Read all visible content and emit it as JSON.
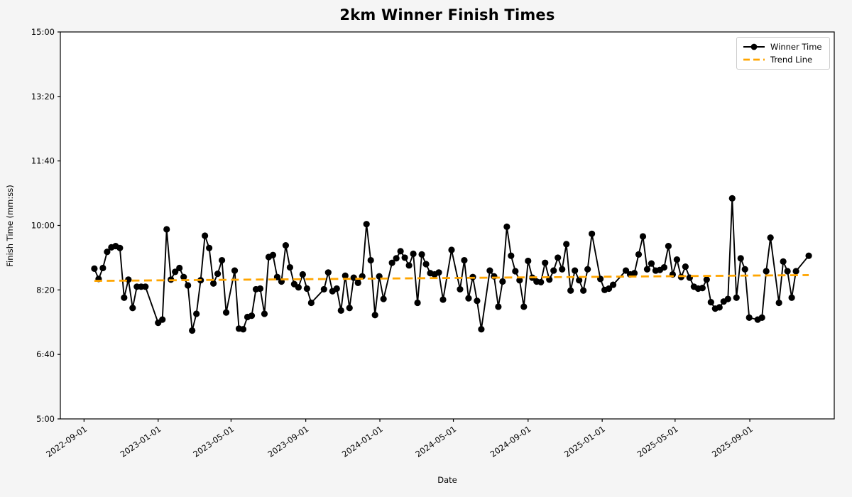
{
  "title": "2km Winner Finish Times",
  "xlabel": "Date",
  "ylabel": "Finish Time (mm:ss)",
  "legend": {
    "series1_label": "Winner Time",
    "series2_label": "Trend Line"
  },
  "colors": {
    "winner_line": "#000000",
    "trend_line": "#FFA500",
    "figure_bg": "#f5f5f5",
    "plot_bg": "#ffffff",
    "spine": "#000000",
    "legend_border": "#cccccc"
  },
  "chart_data": {
    "type": "line",
    "title": "2km Winner Finish Times",
    "xlabel": "Date",
    "ylabel": "Finish Time (mm:ss)",
    "grid": false,
    "legend_position": "upper right",
    "ylim": [
      "5:00",
      "15:00"
    ],
    "y_ticks": [
      "5:00",
      "6:40",
      "8:20",
      "10:00",
      "11:40",
      "13:20",
      "15:00"
    ],
    "x_ticks": [
      "2022-09-01",
      "2023-01-01",
      "2023-05-01",
      "2023-09-01",
      "2024-01-01",
      "2024-05-01",
      "2024-09-01",
      "2025-01-01",
      "2025-05-01",
      "2025-09-01"
    ],
    "x_tick_rotation_deg": -35,
    "x_domain": [
      "2022-07-24",
      "2026-01-18"
    ],
    "series": [
      {
        "name": "Winner Time",
        "style": "solid_with_markers",
        "color": "#000000",
        "x": [
          "2022-09-18",
          "2022-09-25",
          "2022-10-02",
          "2022-10-09",
          "2022-10-16",
          "2022-10-23",
          "2022-10-30",
          "2022-11-06",
          "2022-11-13",
          "2022-11-20",
          "2022-11-27",
          "2022-12-04",
          "2022-12-11",
          "2023-01-01",
          "2023-01-08",
          "2023-01-15",
          "2023-01-22",
          "2023-01-29",
          "2023-02-05",
          "2023-02-12",
          "2023-02-19",
          "2023-02-26",
          "2023-03-05",
          "2023-03-12",
          "2023-03-19",
          "2023-03-26",
          "2023-04-02",
          "2023-04-09",
          "2023-04-16",
          "2023-04-23",
          "2023-05-07",
          "2023-05-14",
          "2023-05-21",
          "2023-05-28",
          "2023-06-04",
          "2023-06-11",
          "2023-06-18",
          "2023-06-25",
          "2023-07-02",
          "2023-07-09",
          "2023-07-16",
          "2023-07-23",
          "2023-07-30",
          "2023-08-06",
          "2023-08-13",
          "2023-08-20",
          "2023-08-27",
          "2023-09-03",
          "2023-09-10",
          "2023-10-01",
          "2023-10-08",
          "2023-10-15",
          "2023-10-22",
          "2023-10-29",
          "2023-11-05",
          "2023-11-12",
          "2023-11-19",
          "2023-11-26",
          "2023-12-03",
          "2023-12-10",
          "2023-12-17",
          "2023-12-24",
          "2023-12-31",
          "2024-01-07",
          "2024-01-21",
          "2024-01-28",
          "2024-02-04",
          "2024-02-11",
          "2024-02-18",
          "2024-02-25",
          "2024-03-03",
          "2024-03-10",
          "2024-03-17",
          "2024-03-24",
          "2024-03-31",
          "2024-04-07",
          "2024-04-14",
          "2024-04-28",
          "2024-05-12",
          "2024-05-19",
          "2024-05-26",
          "2024-06-02",
          "2024-06-09",
          "2024-06-16",
          "2024-06-30",
          "2024-07-07",
          "2024-07-14",
          "2024-07-21",
          "2024-07-28",
          "2024-08-04",
          "2024-08-11",
          "2024-08-18",
          "2024-08-25",
          "2024-09-01",
          "2024-09-08",
          "2024-09-15",
          "2024-09-22",
          "2024-09-29",
          "2024-10-06",
          "2024-10-13",
          "2024-10-20",
          "2024-10-27",
          "2024-11-03",
          "2024-11-10",
          "2024-11-17",
          "2024-11-24",
          "2024-12-01",
          "2024-12-08",
          "2024-12-15",
          "2024-12-29",
          "2025-01-05",
          "2025-01-12",
          "2025-01-19",
          "2025-02-09",
          "2025-02-16",
          "2025-02-23",
          "2025-03-02",
          "2025-03-09",
          "2025-03-16",
          "2025-03-23",
          "2025-03-30",
          "2025-04-06",
          "2025-04-13",
          "2025-04-20",
          "2025-04-27",
          "2025-05-04",
          "2025-05-11",
          "2025-05-18",
          "2025-05-25",
          "2025-06-01",
          "2025-06-08",
          "2025-06-15",
          "2025-06-22",
          "2025-06-29",
          "2025-07-06",
          "2025-07-13",
          "2025-07-20",
          "2025-07-27",
          "2025-08-03",
          "2025-08-10",
          "2025-08-17",
          "2025-08-24",
          "2025-08-31",
          "2025-09-14",
          "2025-09-21",
          "2025-09-28",
          "2025-10-05",
          "2025-10-19",
          "2025-10-26",
          "2025-11-02",
          "2025-11-09",
          "2025-11-16",
          "2025-12-07"
        ],
        "y": [
          "8:53",
          "8:37",
          "8:54",
          "9:19",
          "9:26",
          "9:28",
          "9:25",
          "8:08",
          "8:36",
          "7:52",
          "8:25",
          "8:25",
          "8:25",
          "7:29",
          "7:34",
          "9:54",
          "8:36",
          "8:48",
          "8:54",
          "8:40",
          "8:27",
          "7:17",
          "7:43",
          "8:35",
          "9:44",
          "9:25",
          "8:30",
          "8:45",
          "9:06",
          "7:45",
          "8:50",
          "7:20",
          "7:19",
          "7:38",
          "7:40",
          "8:21",
          "8:22",
          "7:43",
          "9:11",
          "9:14",
          "8:40",
          "8:33",
          "9:29",
          "8:55",
          "8:29",
          "8:24",
          "8:44",
          "8:22",
          "8:00",
          "8:21",
          "8:47",
          "8:18",
          "8:22",
          "7:48",
          "8:42",
          "7:52",
          "8:39",
          "8:31",
          "8:41",
          "10:02",
          "9:06",
          "7:41",
          "8:41",
          "8:06",
          "9:02",
          "9:09",
          "9:20",
          "9:10",
          "8:58",
          "9:16",
          "8:00",
          "9:15",
          "9:00",
          "8:46",
          "8:44",
          "8:47",
          "8:05",
          "9:22",
          "8:21",
          "9:06",
          "8:07",
          "8:40",
          "8:03",
          "7:19",
          "8:50",
          "8:41",
          "7:54",
          "8:33",
          "9:58",
          "9:13",
          "8:49",
          "8:35",
          "7:54",
          "9:05",
          "8:39",
          "8:33",
          "8:32",
          "9:02",
          "8:36",
          "8:50",
          "9:10",
          "8:52",
          "9:31",
          "8:19",
          "8:50",
          "8:35",
          "8:19",
          "8:52",
          "9:47",
          "8:37",
          "8:20",
          "8:22",
          "8:28",
          "8:50",
          "8:44",
          "8:46",
          "9:15",
          "9:43",
          "8:52",
          "9:01",
          "8:50",
          "8:51",
          "8:55",
          "9:28",
          "8:44",
          "9:07",
          "8:40",
          "8:56",
          "8:39",
          "8:25",
          "8:22",
          "8:23",
          "8:36",
          "8:01",
          "7:51",
          "7:53",
          "8:02",
          "8:06",
          "10:42",
          "8:08",
          "9:09",
          "8:52",
          "7:37",
          "7:34",
          "7:37",
          "8:49",
          "9:41",
          "8:00",
          "9:04",
          "8:49",
          "8:08",
          "8:49",
          "9:13"
        ]
      },
      {
        "name": "Trend Line",
        "style": "dashed",
        "color": "#FFA500",
        "x": [
          "2022-09-18",
          "2025-12-07"
        ],
        "y": [
          "8:34",
          "8:43"
        ]
      }
    ]
  }
}
